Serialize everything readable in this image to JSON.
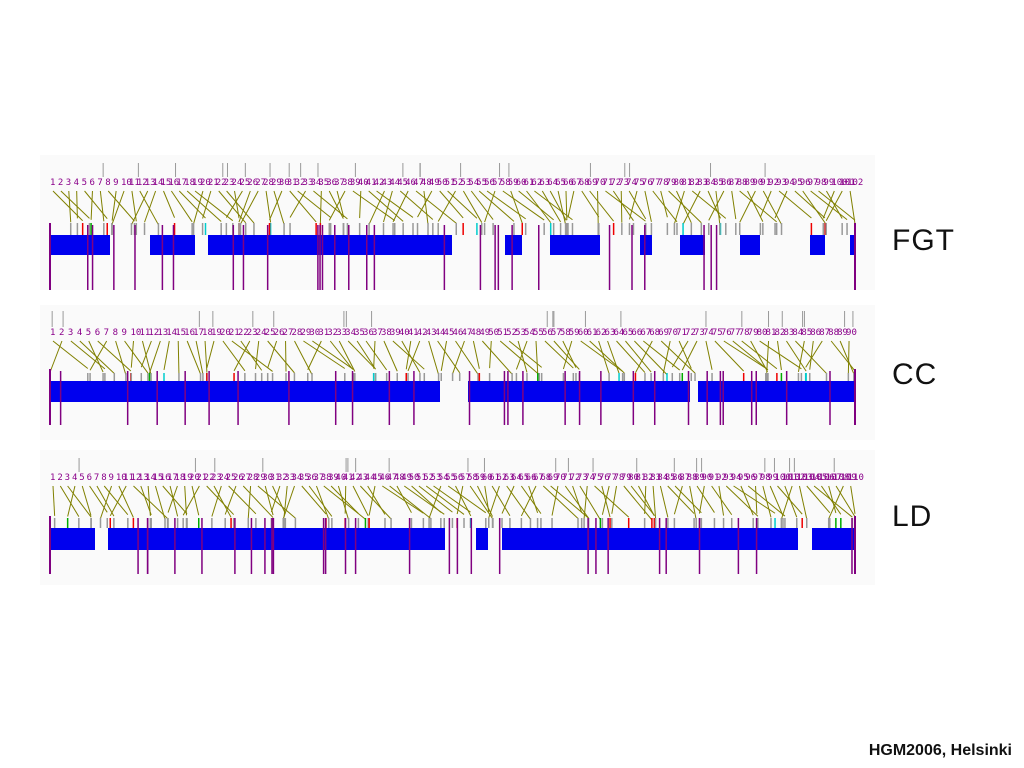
{
  "tracks": [
    {
      "id": "fgt",
      "label": "FGT",
      "count": 102,
      "seed": 17
    },
    {
      "id": "cc",
      "label": "CC",
      "count": 90,
      "seed": 41
    },
    {
      "id": "ld",
      "label": "LD",
      "count": 110,
      "seed": 73
    }
  ],
  "footer": {
    "text": "HGM2006, Helsinki"
  },
  "colors": {
    "numbers": "#8a008a",
    "connectors": "#808000",
    "bar": "#0000ee",
    "vertical": "#800080",
    "red": "#ee0000",
    "cyan": "#00cccc",
    "green": "#00aa00",
    "gray": "#999999"
  }
}
